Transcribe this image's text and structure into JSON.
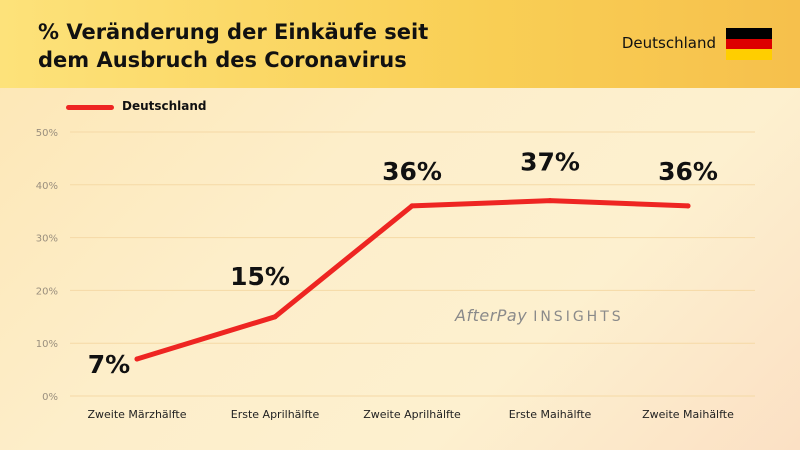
{
  "header": {
    "title_line1": "% Veränderung der Einkäufe seit",
    "title_line2": "dem Ausbruch des Coronavirus",
    "country": "Deutschland",
    "flag_colors": [
      "#000000",
      "#dd0000",
      "#ffce00"
    ]
  },
  "watermark": {
    "brand": "AfterPay",
    "sub": "INSIGHTS"
  },
  "chart_data": {
    "type": "line",
    "title": "% Veränderung der Einkäufe seit dem Ausbruch des Coronavirus",
    "categories": [
      "Zweite Märzhälfte",
      "Erste Aprilhälfte",
      "Zweite Aprilhälfte",
      "Erste Maihälfte",
      "Zweite Maihälfte"
    ],
    "series": [
      {
        "name": "Deutschland",
        "values": [
          7,
          15,
          36,
          37,
          36
        ],
        "labels": [
          "7%",
          "15%",
          "36%",
          "37%",
          "36%"
        ],
        "color": "#ee2522"
      }
    ],
    "ylim": [
      0,
      50
    ],
    "yticks": [
      "0%",
      "10%",
      "20%",
      "30%",
      "40%",
      "50%"
    ],
    "grid": true,
    "legend": "top-left",
    "gridline_color": "#f5d9a6"
  }
}
